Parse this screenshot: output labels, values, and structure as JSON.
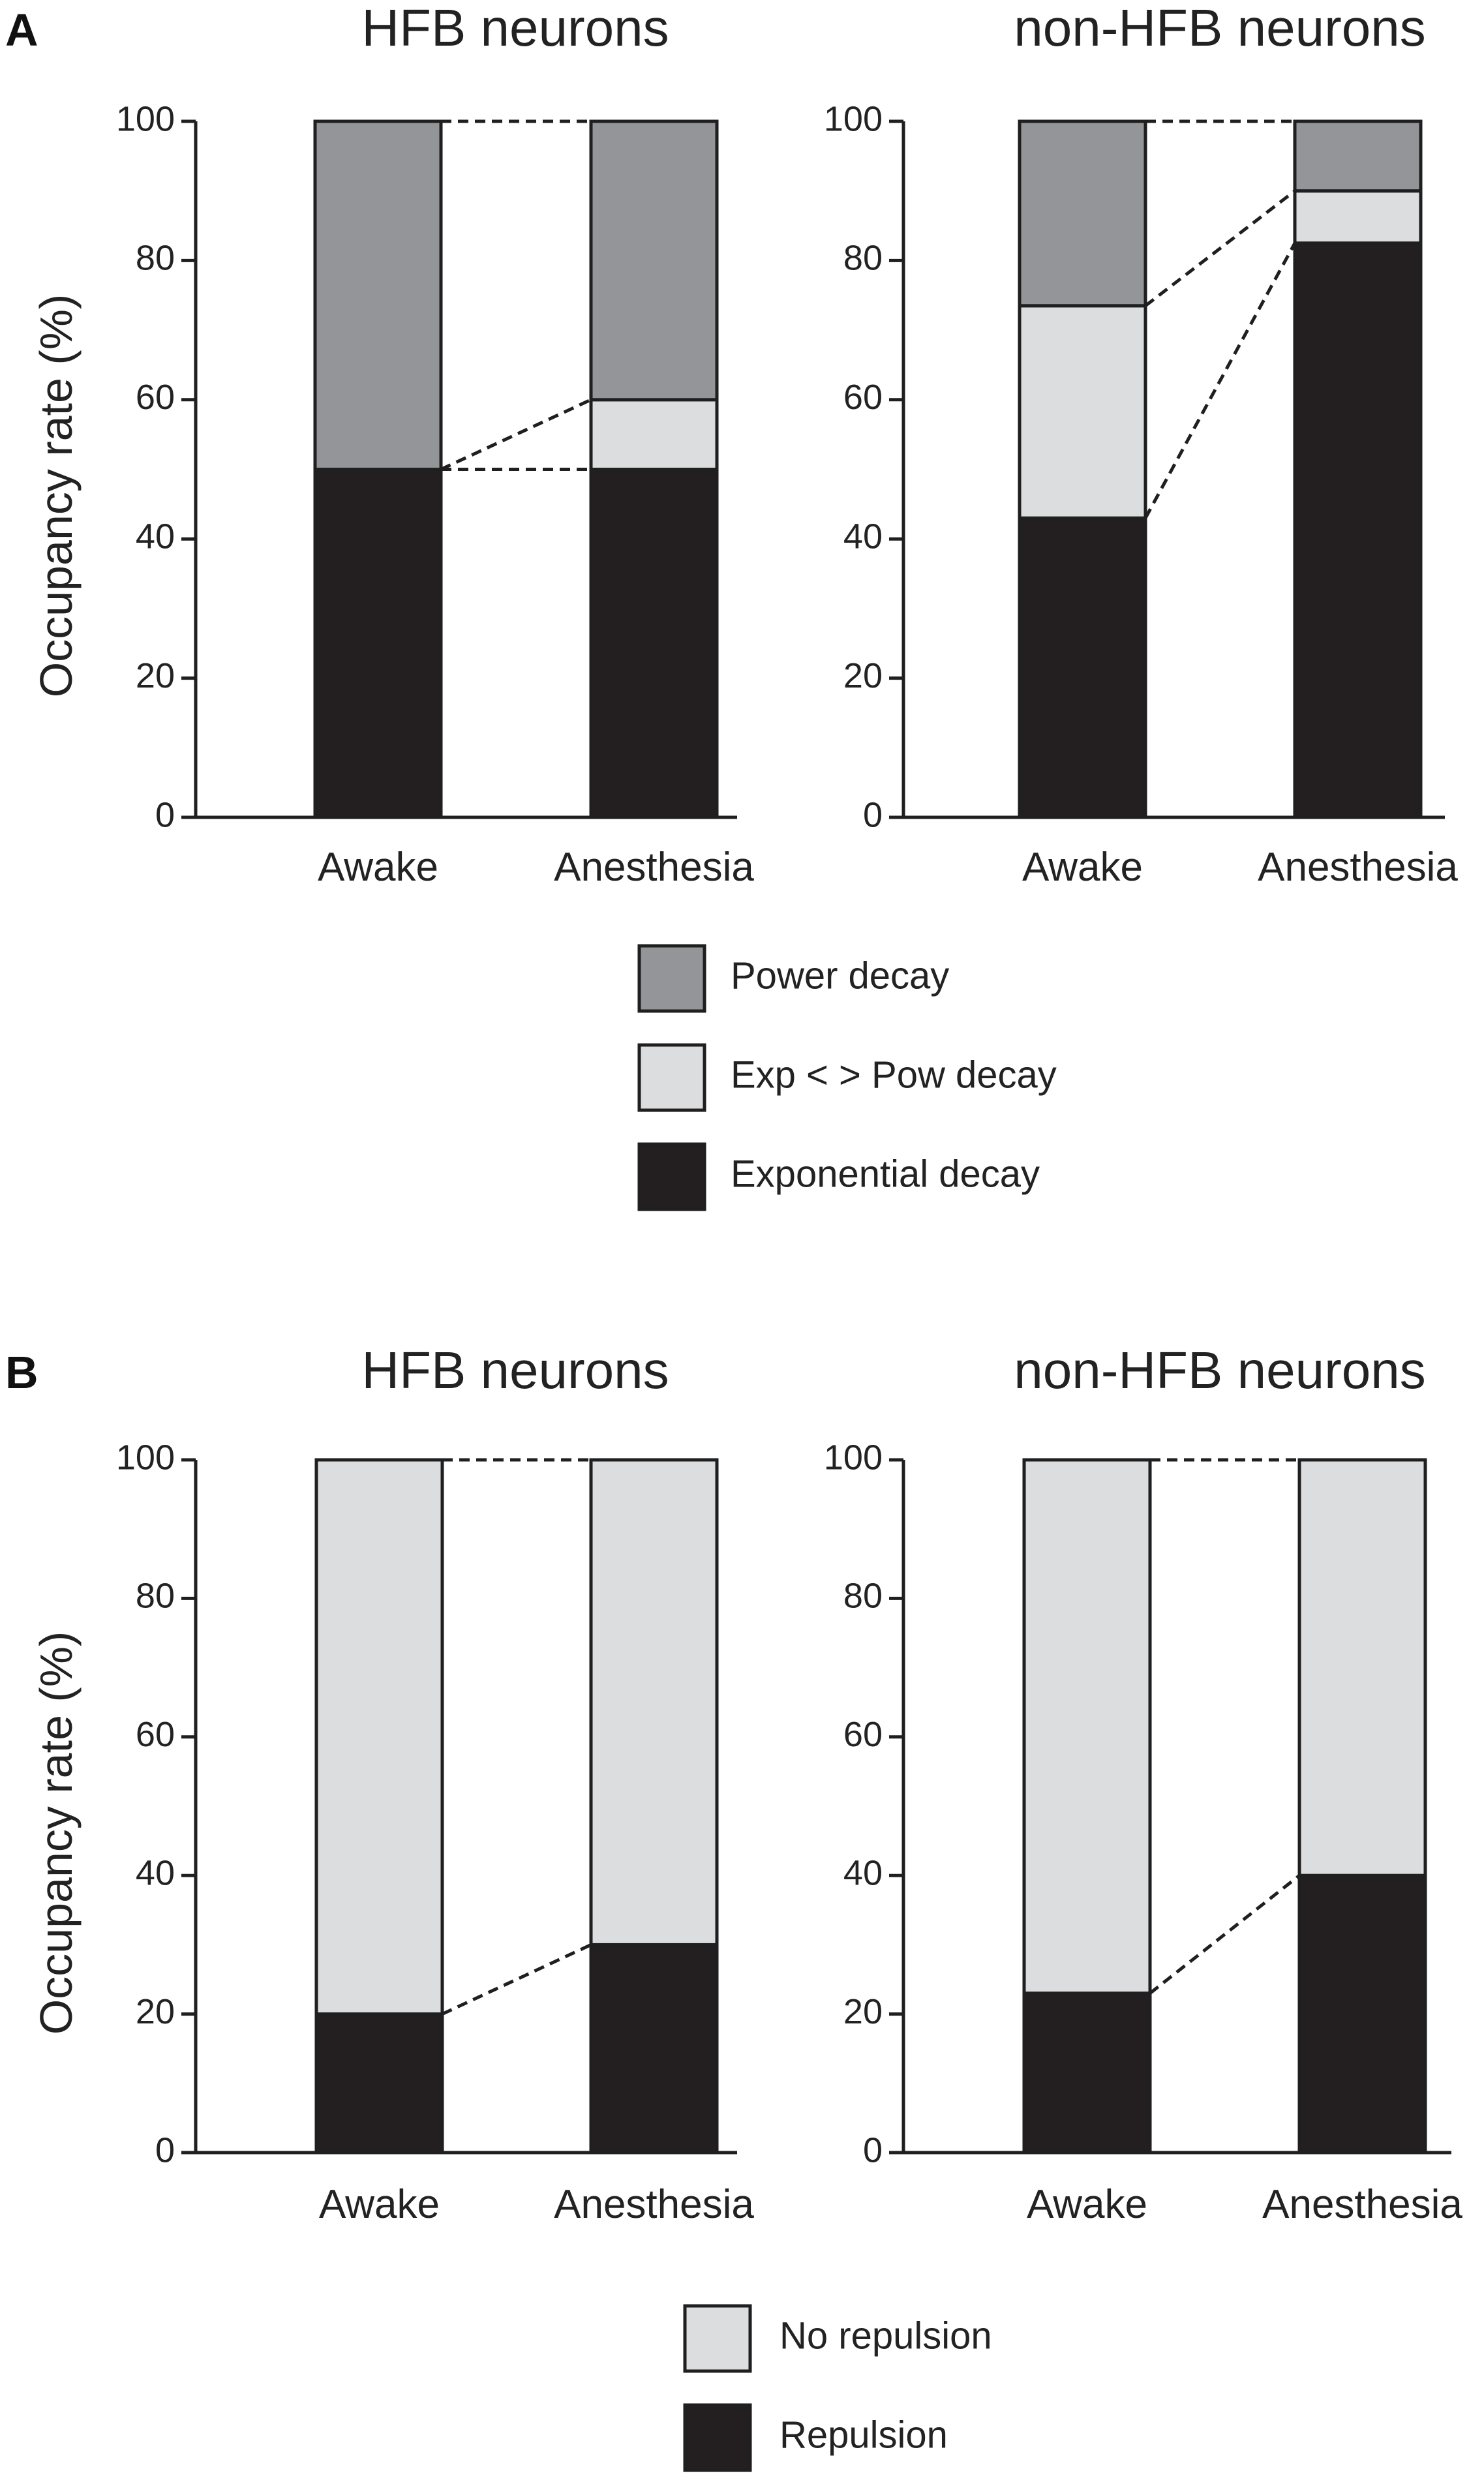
{
  "colors": {
    "power": "#939598",
    "mixed": "#dcdddf",
    "exponential": "#231f20",
    "no_repulsion": "#dcdddf",
    "repulsion": "#231f20"
  },
  "panels": [
    {
      "letter": "A",
      "ylabel": "Occupancy rate (%)"
    },
    {
      "letter": "B",
      "ylabel": "Occupancy rate (%)"
    }
  ],
  "chart_data": [
    {
      "type": "bar",
      "stacked": true,
      "panel": "A",
      "title": "HFB neurons",
      "ylabel": "Occupancy rate (%)",
      "categories": [
        "Awake",
        "Anesthesia"
      ],
      "ylim": [
        0,
        100
      ],
      "yticks": [
        0,
        20,
        40,
        60,
        80,
        100
      ],
      "series": [
        {
          "name": "Exponential decay",
          "color_key": "exponential",
          "values": [
            50,
            50
          ]
        },
        {
          "name": "Exp < > Pow decay",
          "color_key": "mixed",
          "values": [
            0,
            10
          ]
        },
        {
          "name": "Power decay",
          "color_key": "power",
          "values": [
            50,
            40
          ]
        }
      ]
    },
    {
      "type": "bar",
      "stacked": true,
      "panel": "A",
      "title": "non-HFB neurons",
      "ylabel": "",
      "categories": [
        "Awake",
        "Anesthesia"
      ],
      "ylim": [
        0,
        100
      ],
      "yticks": [
        0,
        20,
        40,
        60,
        80,
        100
      ],
      "series": [
        {
          "name": "Exponential decay",
          "color_key": "exponential",
          "values": [
            43,
            82.5
          ]
        },
        {
          "name": "Exp < > Pow decay",
          "color_key": "mixed",
          "values": [
            30.5,
            7.5
          ]
        },
        {
          "name": "Power decay",
          "color_key": "power",
          "values": [
            26.5,
            10
          ]
        }
      ]
    },
    {
      "type": "bar",
      "stacked": true,
      "panel": "B",
      "title": "HFB neurons",
      "ylabel": "Occupancy rate (%)",
      "categories": [
        "Awake",
        "Anesthesia"
      ],
      "ylim": [
        0,
        100
      ],
      "yticks": [
        0,
        20,
        40,
        60,
        80,
        100
      ],
      "series": [
        {
          "name": "Repulsion",
          "color_key": "repulsion",
          "values": [
            20,
            30
          ]
        },
        {
          "name": "No repulsion",
          "color_key": "no_repulsion",
          "values": [
            80,
            70
          ]
        }
      ]
    },
    {
      "type": "bar",
      "stacked": true,
      "panel": "B",
      "title": "non-HFB neurons",
      "ylabel": "",
      "categories": [
        "Awake",
        "Anesthesia"
      ],
      "ylim": [
        0,
        100
      ],
      "yticks": [
        0,
        20,
        40,
        60,
        80,
        100
      ],
      "series": [
        {
          "name": "Repulsion",
          "color_key": "repulsion",
          "values": [
            23,
            40
          ]
        },
        {
          "name": "No repulsion",
          "color_key": "no_repulsion",
          "values": [
            77,
            60
          ]
        }
      ]
    }
  ],
  "legends": [
    {
      "panel": "A",
      "items": [
        {
          "label": "Power decay",
          "color_key": "power"
        },
        {
          "label": "Exp < > Pow decay",
          "color_key": "mixed"
        },
        {
          "label": "Exponential decay",
          "color_key": "exponential"
        }
      ]
    },
    {
      "panel": "B",
      "items": [
        {
          "label": "No repulsion",
          "color_key": "no_repulsion"
        },
        {
          "label": "Repulsion",
          "color_key": "repulsion"
        }
      ]
    }
  ]
}
